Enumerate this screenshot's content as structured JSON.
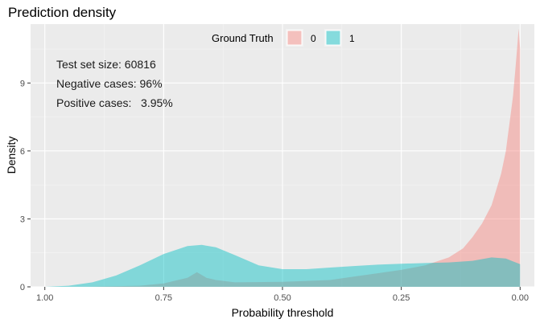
{
  "chart_data": {
    "type": "area",
    "title": "Prediction density",
    "xlabel": "Probability threshold",
    "ylabel": "Density",
    "x_reversed": true,
    "xlim": [
      1.03,
      -0.03
    ],
    "ylim": [
      0,
      11.6
    ],
    "x_ticks": [
      1.0,
      0.75,
      0.5,
      0.25,
      0.0
    ],
    "x_tick_labels": [
      "1.00",
      "0.75",
      "0.50",
      "0.25",
      "0.00"
    ],
    "y_ticks": [
      0,
      3,
      6,
      9
    ],
    "y_tick_labels": [
      "0",
      "3",
      "6",
      "9"
    ],
    "grid": true,
    "legend": {
      "title": "Ground Truth",
      "placement": "top",
      "entries": [
        {
          "label": "0",
          "color": "#f8766d"
        },
        {
          "label": "1",
          "color": "#00bfc4"
        }
      ]
    },
    "annotations": [
      "Test set size: 60816",
      "Negative cases: 96%",
      "Positive cases:   3.95%"
    ],
    "series": [
      {
        "name": "0",
        "color": "#f8766d",
        "x": [
          1.0,
          0.9,
          0.8,
          0.75,
          0.72,
          0.7,
          0.68,
          0.66,
          0.64,
          0.6,
          0.5,
          0.4,
          0.35,
          0.3,
          0.25,
          0.2,
          0.15,
          0.12,
          0.1,
          0.08,
          0.06,
          0.05,
          0.04,
          0.03,
          0.025,
          0.02,
          0.015,
          0.01,
          0.006,
          0.003,
          0.0
        ],
        "values": [
          0.0,
          0.01,
          0.05,
          0.15,
          0.3,
          0.4,
          0.65,
          0.4,
          0.3,
          0.2,
          0.22,
          0.3,
          0.45,
          0.6,
          0.75,
          0.95,
          1.3,
          1.7,
          2.2,
          2.8,
          3.6,
          4.3,
          5.0,
          6.0,
          6.8,
          7.6,
          8.4,
          9.6,
          10.6,
          11.4,
          10.5
        ]
      },
      {
        "name": "1",
        "color": "#00bfc4",
        "x": [
          1.0,
          0.95,
          0.9,
          0.85,
          0.8,
          0.75,
          0.7,
          0.67,
          0.64,
          0.6,
          0.55,
          0.5,
          0.45,
          0.4,
          0.35,
          0.3,
          0.25,
          0.2,
          0.15,
          0.1,
          0.06,
          0.03,
          0.0
        ],
        "values": [
          0.0,
          0.05,
          0.2,
          0.5,
          0.95,
          1.45,
          1.8,
          1.85,
          1.75,
          1.4,
          0.95,
          0.78,
          0.78,
          0.85,
          0.92,
          0.98,
          1.02,
          1.05,
          1.08,
          1.15,
          1.3,
          1.25,
          1.0
        ]
      }
    ]
  }
}
